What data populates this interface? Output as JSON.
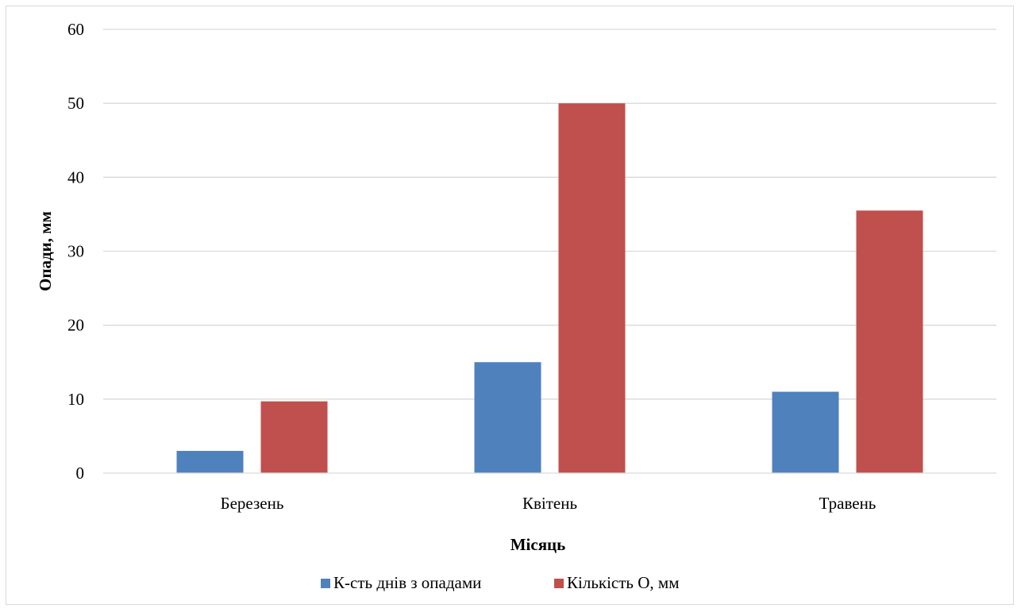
{
  "chart_data": {
    "type": "bar",
    "categories": [
      "Березень",
      "Квітень",
      "Травень"
    ],
    "series": [
      {
        "name": "К-сть днів з опадами",
        "values": [
          3,
          15,
          11
        ],
        "color": "#4f81bd"
      },
      {
        "name": "Кількість О, мм",
        "values": [
          9.7,
          50,
          35.5
        ],
        "color": "#c0504d"
      }
    ],
    "xlabel": "Місяць",
    "ylabel": "Опади, мм",
    "ylim": [
      0,
      60
    ],
    "yticks": [
      0,
      10,
      20,
      30,
      40,
      50,
      60
    ],
    "grid": true,
    "gridline_color": "#d9d9d9",
    "legend_position": "bottom"
  }
}
